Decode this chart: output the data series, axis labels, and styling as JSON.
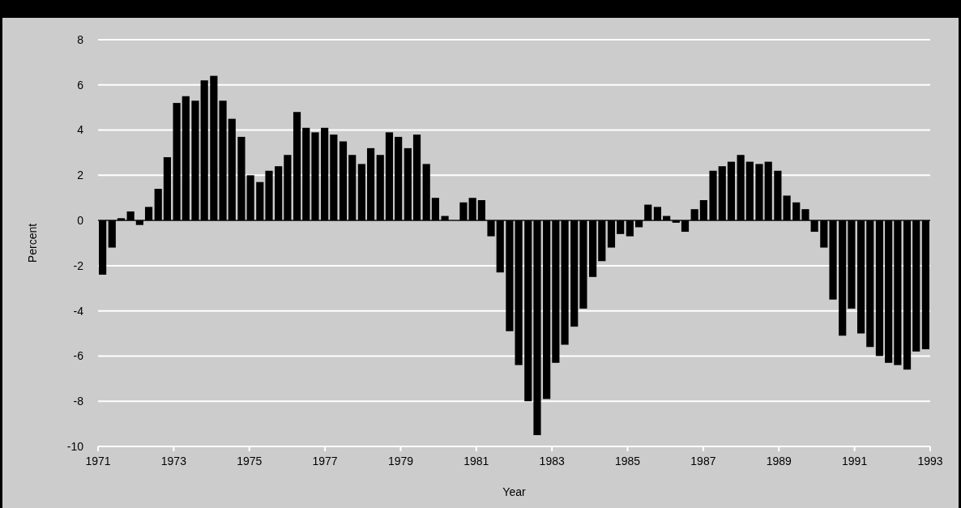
{
  "chart_data": {
    "type": "bar",
    "xlabel": "Year",
    "ylabel": "Percent",
    "x": [
      1971.12,
      1971.37,
      1971.61,
      1971.86,
      1972.1,
      1972.34,
      1972.59,
      1972.83,
      1973.08,
      1973.32,
      1973.57,
      1973.81,
      1974.06,
      1974.3,
      1974.54,
      1974.79,
      1975.03,
      1975.28,
      1975.52,
      1975.77,
      1976.01,
      1976.26,
      1976.5,
      1976.74,
      1976.99,
      1977.23,
      1977.48,
      1977.72,
      1977.97,
      1978.21,
      1978.46,
      1978.7,
      1978.94,
      1979.19,
      1979.43,
      1979.68,
      1979.92,
      1980.17,
      1980.41,
      1980.66,
      1980.9,
      1981.14,
      1981.39,
      1981.63,
      1981.88,
      1982.12,
      1982.37,
      1982.61,
      1982.86,
      1983.1,
      1983.34,
      1983.59,
      1983.83,
      1984.08,
      1984.32,
      1984.57,
      1984.81,
      1985.06,
      1985.3,
      1985.54,
      1985.79,
      1986.03,
      1986.28,
      1986.52,
      1986.77,
      1987.01,
      1987.26,
      1987.5,
      1987.74,
      1987.99,
      1988.23,
      1988.48,
      1988.72,
      1988.97,
      1989.21,
      1989.46,
      1989.7,
      1989.94,
      1990.19,
      1990.43,
      1990.68,
      1990.92,
      1991.17,
      1991.41,
      1991.66,
      1991.9,
      1992.14,
      1992.39,
      1992.63,
      1992.88
    ],
    "values": [
      -2.4,
      -1.2,
      0.1,
      0.4,
      -0.2,
      0.6,
      1.4,
      2.8,
      5.2,
      5.5,
      5.3,
      6.2,
      6.4,
      5.3,
      4.5,
      3.7,
      2.0,
      1.7,
      2.2,
      2.4,
      2.9,
      4.8,
      4.1,
      3.9,
      4.1,
      3.8,
      3.5,
      2.9,
      2.5,
      3.2,
      2.9,
      3.9,
      3.7,
      3.2,
      3.8,
      2.5,
      1.0,
      0.2,
      0.0,
      0.8,
      1.0,
      0.9,
      -0.7,
      -2.3,
      -4.9,
      -6.4,
      -8.0,
      -9.5,
      -7.9,
      -6.3,
      -5.5,
      -4.7,
      -3.9,
      -2.5,
      -1.8,
      -1.2,
      -0.6,
      -0.7,
      -0.3,
      0.7,
      0.6,
      0.2,
      -0.1,
      -0.5,
      0.5,
      0.9,
      2.2,
      2.4,
      2.6,
      2.9,
      2.6,
      2.5,
      2.6,
      2.2,
      1.1,
      0.8,
      0.5,
      -0.5,
      -1.2,
      -3.5,
      -5.1,
      -3.9,
      -5.0,
      -5.6,
      -6.0,
      -6.3,
      -6.4,
      -6.6,
      -5.8,
      -5.7
    ],
    "color": "#000000",
    "xlim": [
      1971,
      1993
    ],
    "xticks": [
      1971,
      1973,
      1975,
      1977,
      1979,
      1981,
      1983,
      1985,
      1987,
      1989,
      1991,
      1993
    ],
    "ylim": [
      -10,
      8
    ],
    "yticks": [
      -10,
      -8,
      -6,
      -4,
      -2,
      0,
      2,
      4,
      6,
      8
    ],
    "grid": "y"
  }
}
